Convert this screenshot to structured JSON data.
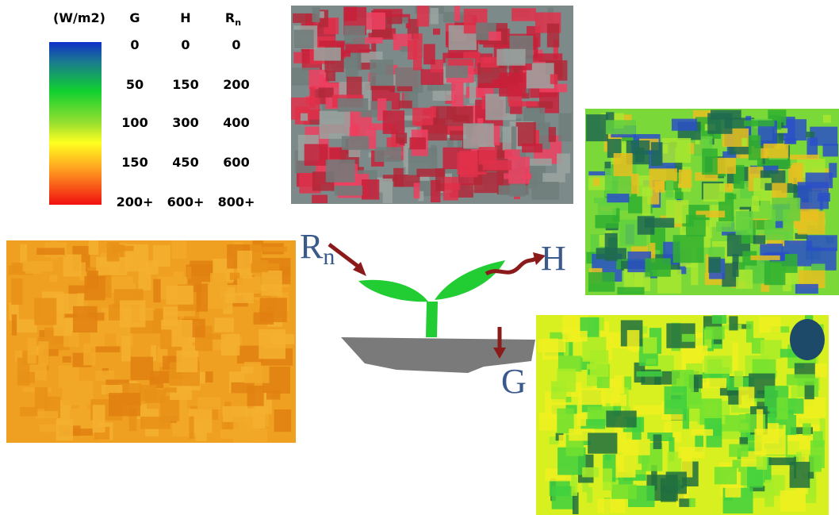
{
  "legend": {
    "unit": "(W/m2)",
    "columns": [
      {
        "label": "G",
        "values": [
          "0",
          "50",
          "100",
          "150",
          "200+"
        ]
      },
      {
        "label": "H",
        "values": [
          "0",
          "150",
          "300",
          "450",
          "600+"
        ]
      },
      {
        "label": {
          "base": "R",
          "sub": "n"
        },
        "values": [
          "0",
          "200",
          "400",
          "600",
          "800+"
        ]
      }
    ]
  },
  "diagram": {
    "rn": {
      "base": "R",
      "sub": "n"
    },
    "h": "H",
    "g": "G"
  }
}
